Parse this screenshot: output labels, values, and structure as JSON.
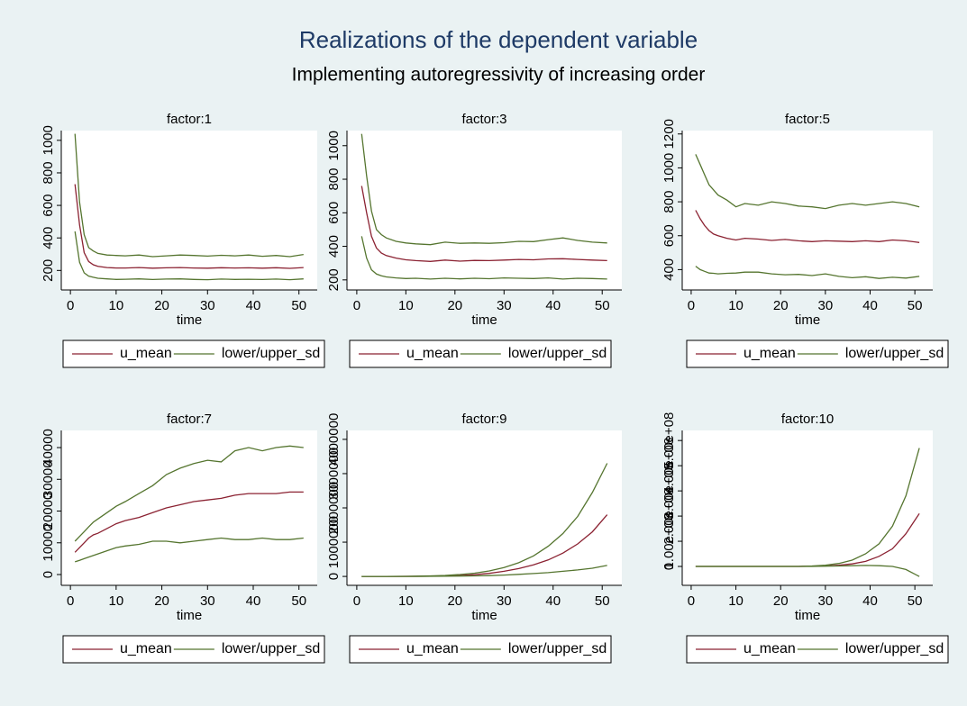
{
  "title": "Realizations of the dependent variable",
  "subtitle": "Implementing autoregressivity of increasing order",
  "chart_data": [
    {
      "type": "line",
      "title": "factor:1",
      "xlabel": "time",
      "x": [
        1,
        2,
        3,
        4,
        5,
        6,
        8,
        10,
        12,
        15,
        18,
        21,
        24,
        27,
        30,
        33,
        36,
        39,
        42,
        45,
        48,
        51
      ],
      "xlim": [
        -2,
        54
      ],
      "xticks": [
        0,
        10,
        20,
        30,
        40,
        50
      ],
      "ylim": [
        80,
        1060
      ],
      "yticks": [
        200,
        400,
        600,
        800,
        1000
      ],
      "series": [
        {
          "name": "u_mean",
          "color": "#8b2232",
          "values": [
            730,
            480,
            310,
            255,
            235,
            225,
            218,
            215,
            215,
            218,
            214,
            216,
            218,
            215,
            214,
            217,
            215,
            216,
            214,
            217,
            213,
            218
          ]
        },
        {
          "name": "lower/upper_sd",
          "color": "#55752f",
          "values": [
            440,
            250,
            185,
            165,
            158,
            152,
            148,
            145,
            146,
            148,
            144,
            147,
            148,
            145,
            143,
            147,
            145,
            146,
            144,
            147,
            143,
            148
          ]
        },
        {
          "color": "#55752f",
          "values": [
            1040,
            620,
            420,
            340,
            320,
            305,
            295,
            292,
            290,
            295,
            285,
            290,
            295,
            292,
            288,
            293,
            290,
            295,
            287,
            292,
            285,
            298
          ]
        }
      ]
    },
    {
      "type": "line",
      "title": "factor:3",
      "xlabel": "time",
      "x": [
        1,
        2,
        3,
        4,
        5,
        6,
        8,
        10,
        12,
        15,
        18,
        21,
        24,
        27,
        30,
        33,
        36,
        39,
        42,
        45,
        48,
        51
      ],
      "xlim": [
        -2,
        54
      ],
      "xticks": [
        0,
        10,
        20,
        30,
        40,
        50
      ],
      "ylim": [
        140,
        1090
      ],
      "yticks": [
        200,
        400,
        600,
        800,
        1000
      ],
      "series": [
        {
          "name": "u_mean",
          "color": "#8b2232",
          "values": [
            760,
            600,
            460,
            390,
            360,
            345,
            330,
            320,
            315,
            310,
            318,
            312,
            316,
            315,
            318,
            322,
            320,
            325,
            326,
            322,
            318,
            315
          ]
        },
        {
          "name": "lower/upper_sd",
          "color": "#55752f",
          "values": [
            460,
            330,
            260,
            235,
            225,
            218,
            212,
            208,
            210,
            205,
            210,
            206,
            210,
            207,
            212,
            210,
            208,
            212,
            205,
            210,
            208,
            205
          ]
        },
        {
          "color": "#55752f",
          "values": [
            1070,
            820,
            610,
            500,
            470,
            450,
            430,
            420,
            415,
            410,
            425,
            418,
            420,
            418,
            422,
            430,
            428,
            440,
            450,
            435,
            425,
            420
          ]
        }
      ]
    },
    {
      "type": "line",
      "title": "factor:5",
      "xlabel": "time",
      "x": [
        1,
        2,
        3,
        4,
        5,
        6,
        8,
        10,
        12,
        15,
        18,
        21,
        24,
        27,
        30,
        33,
        36,
        39,
        42,
        45,
        48,
        51
      ],
      "xlim": [
        -2,
        54
      ],
      "xticks": [
        0,
        10,
        20,
        30,
        40,
        50
      ],
      "ylim": [
        280,
        1220
      ],
      "yticks": [
        400,
        600,
        800,
        1000,
        1200
      ],
      "series": [
        {
          "name": "u_mean",
          "color": "#8b2232",
          "values": [
            750,
            700,
            660,
            630,
            610,
            600,
            585,
            575,
            585,
            580,
            572,
            578,
            570,
            565,
            570,
            568,
            565,
            570,
            565,
            575,
            570,
            560
          ]
        },
        {
          "name": "lower/upper_sd",
          "color": "#55752f",
          "values": [
            420,
            400,
            390,
            380,
            378,
            375,
            378,
            380,
            385,
            385,
            375,
            370,
            372,
            365,
            375,
            360,
            352,
            358,
            348,
            355,
            350,
            360
          ]
        },
        {
          "color": "#55752f",
          "values": [
            1080,
            1020,
            960,
            900,
            870,
            840,
            810,
            770,
            790,
            780,
            800,
            790,
            775,
            770,
            760,
            780,
            790,
            780,
            790,
            800,
            790,
            770
          ]
        }
      ]
    },
    {
      "type": "line",
      "title": "factor:7",
      "xlabel": "time",
      "x": [
        1,
        2,
        3,
        4,
        5,
        6,
        8,
        10,
        12,
        15,
        18,
        21,
        24,
        27,
        30,
        33,
        36,
        39,
        42,
        45,
        48,
        51
      ],
      "xlim": [
        -2,
        54
      ],
      "xticks": [
        0,
        10,
        20,
        30,
        40,
        50
      ],
      "ylim": [
        -3400,
        45400
      ],
      "yticks": [
        0,
        10000,
        20000,
        30000,
        40000
      ],
      "series": [
        {
          "name": "u_mean",
          "color": "#8b2232",
          "values": [
            7000,
            8500,
            10000,
            11500,
            12500,
            13000,
            14500,
            16000,
            17000,
            18000,
            19500,
            21000,
            22000,
            23000,
            23500,
            24000,
            25000,
            25500,
            25500,
            25500,
            26000,
            26000
          ]
        },
        {
          "name": "lower/upper_sd",
          "color": "#55752f",
          "values": [
            4000,
            4500,
            5000,
            5500,
            6000,
            6500,
            7500,
            8500,
            9000,
            9500,
            10500,
            10500,
            10000,
            10500,
            11000,
            11500,
            11000,
            11000,
            11500,
            11000,
            11000,
            11500
          ]
        },
        {
          "color": "#55752f",
          "values": [
            10500,
            12000,
            13500,
            15000,
            16500,
            17500,
            19500,
            21500,
            23000,
            25500,
            28000,
            31500,
            33500,
            35000,
            36000,
            35500,
            39000,
            40000,
            39000,
            40000,
            40500,
            40000
          ]
        }
      ]
    },
    {
      "type": "line",
      "title": "factor:9",
      "xlabel": "time",
      "x": [
        1,
        2,
        3,
        4,
        5,
        6,
        8,
        10,
        12,
        15,
        18,
        21,
        24,
        27,
        30,
        33,
        36,
        39,
        42,
        45,
        48,
        51
      ],
      "xlim": [
        -2,
        54
      ],
      "xticks": [
        0,
        10,
        20,
        30,
        40,
        50
      ],
      "ylim": [
        -260000,
        4260000
      ],
      "yticks": [
        0,
        1000000,
        2000000,
        3000000,
        4000000
      ],
      "series": [
        {
          "name": "u_mean",
          "color": "#8b2232",
          "values": [
            0,
            0,
            0,
            0,
            0,
            0,
            1000,
            2000,
            4000,
            8000,
            15000,
            30000,
            50000,
            90000,
            150000,
            230000,
            340000,
            480000,
            680000,
            950000,
            1300000,
            1800000
          ]
        },
        {
          "name": "lower/upper_sd",
          "color": "#55752f",
          "values": [
            0,
            0,
            0,
            0,
            0,
            0,
            0,
            500,
            1000,
            2000,
            5000,
            10000,
            15000,
            25000,
            40000,
            60000,
            85000,
            110000,
            150000,
            190000,
            240000,
            320000
          ]
        },
        {
          "color": "#55752f",
          "values": [
            0,
            0,
            0,
            0,
            0,
            0,
            2000,
            4000,
            8000,
            15000,
            28000,
            55000,
            95000,
            160000,
            260000,
            400000,
            600000,
            880000,
            1250000,
            1750000,
            2450000,
            3300000
          ]
        }
      ]
    },
    {
      "type": "line",
      "title": "factor:10",
      "xlabel": "time",
      "x": [
        1,
        2,
        3,
        4,
        5,
        6,
        8,
        10,
        12,
        15,
        18,
        21,
        24,
        27,
        30,
        33,
        36,
        39,
        42,
        45,
        48,
        51
      ],
      "xlim": [
        -2,
        54
      ],
      "xticks": [
        0,
        10,
        20,
        30,
        40,
        50
      ],
      "ylim": [
        -75000000,
        540000000
      ],
      "yticks": [
        0,
        {
          "value": 100000000,
          "label": "1.00e+08"
        },
        {
          "value": 200000000,
          "label": "2.00e+08"
        },
        {
          "value": 300000000,
          "label": "3.00e+08"
        },
        {
          "value": 400000000,
          "label": "4.00e+08"
        },
        {
          "value": 500000000,
          "label": "5.00e+08"
        }
      ],
      "series": [
        {
          "name": "u_mean",
          "color": "#8b2232",
          "values": [
            0,
            0,
            0,
            0,
            0,
            0,
            0,
            0,
            0,
            0,
            0,
            0,
            0,
            1000000,
            2000000,
            5000000,
            10000000,
            20000000,
            40000000,
            70000000,
            130000000,
            210000000
          ]
        },
        {
          "name": "lower/upper_sd",
          "color": "#55752f",
          "values": [
            0,
            0,
            0,
            0,
            0,
            0,
            0,
            0,
            0,
            0,
            0,
            0,
            0,
            0,
            1000000,
            2000000,
            3000000,
            4000000,
            3000000,
            0,
            -12000000,
            -40000000
          ]
        },
        {
          "color": "#55752f",
          "values": [
            0,
            0,
            0,
            0,
            0,
            0,
            0,
            0,
            0,
            0,
            0,
            0,
            0,
            2000000,
            5000000,
            12000000,
            25000000,
            50000000,
            90000000,
            160000000,
            280000000,
            470000000
          ]
        }
      ]
    }
  ]
}
